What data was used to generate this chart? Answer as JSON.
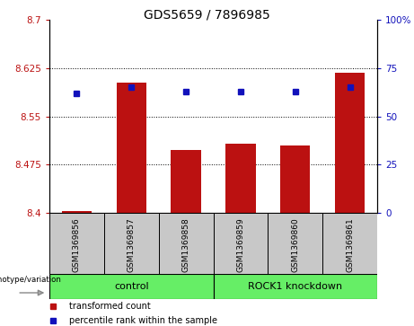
{
  "title": "GDS5659 / 7896985",
  "samples": [
    "GSM1369856",
    "GSM1369857",
    "GSM1369858",
    "GSM1369859",
    "GSM1369860",
    "GSM1369861"
  ],
  "red_values": [
    8.403,
    8.603,
    8.497,
    8.508,
    8.505,
    8.618
  ],
  "blue_values": [
    62,
    65,
    63,
    63,
    63,
    65
  ],
  "ylim_left": [
    8.4,
    8.7
  ],
  "ylim_right": [
    0,
    100
  ],
  "yticks_left": [
    8.4,
    8.475,
    8.55,
    8.625,
    8.7
  ],
  "yticks_right": [
    0,
    25,
    50,
    75,
    100
  ],
  "ytick_labels_left": [
    "8.4",
    "8.475",
    "8.55",
    "8.625",
    "8.7"
  ],
  "ytick_labels_right": [
    "0",
    "25",
    "50",
    "75",
    "100%"
  ],
  "bar_color": "#bb1111",
  "dot_color": "#1111bb",
  "bar_bottom": 8.4,
  "bar_width": 0.55,
  "plot_bg": "#ffffff",
  "sample_box_color": "#c8c8c8",
  "legend_red_label": "transformed count",
  "legend_blue_label": "percentile rank within the sample",
  "genotype_label": "genotype/variation",
  "control_color": "#66ee66",
  "knockdown_color": "#66ee66",
  "title_fontsize": 10,
  "tick_fontsize": 7.5,
  "label_fontsize": 7.5
}
